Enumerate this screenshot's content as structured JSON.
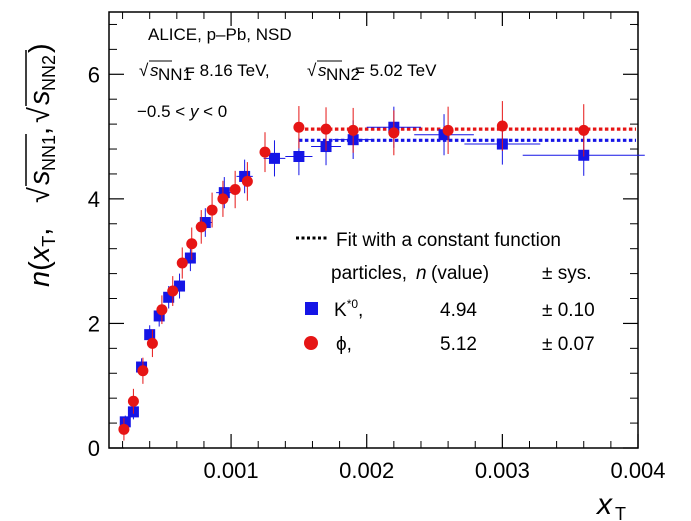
{
  "chart_data": {
    "type": "scatter",
    "annotations": {
      "collision": "ALICE, p–Pb, NSD",
      "energy_line": "√sNN1 = 8.16 TeV, √sNN2 = 5.02 TeV",
      "energy_1": "= 8.16 TeV,",
      "energy_2": "= 5.02 TeV",
      "rapidity": "−0.5 < y < 0"
    },
    "xlabel": "x_T",
    "ylabel": "n(x_T, √sNN1, √sNN2)",
    "xlim": [
      0.0001,
      0.004
    ],
    "ylim": [
      0,
      7
    ],
    "xticks": [
      0.001,
      0.002,
      0.003,
      0.004
    ],
    "xtick_labels": [
      "0.001",
      "0.002",
      "0.003",
      "0.004"
    ],
    "yticks": [
      0,
      2,
      4,
      6
    ],
    "ytick_labels": [
      "0",
      "2",
      "4",
      "6"
    ],
    "legend": {
      "fit_label": "Fit with a constant function",
      "header_particles": "particles,",
      "header_n": "n",
      "header_value": "(value)",
      "header_sys": "± sys.",
      "rows": [
        {
          "label": "K*0,",
          "value": "4.94",
          "sys": "± 0.10"
        },
        {
          "label": "ϕ,",
          "value": "5.12",
          "sys": "± 0.07"
        }
      ]
    },
    "series": [
      {
        "name": "K*0",
        "color": "#1515e6",
        "marker": "square",
        "fit": 4.94,
        "points": [
          [
            0.00022,
            0.42,
            0.1,
            2e-05
          ],
          [
            0.00028,
            0.58,
            0.12,
            2e-05
          ],
          [
            0.00034,
            1.3,
            0.14,
            2e-05
          ],
          [
            0.0004,
            1.82,
            0.15,
            3e-05
          ],
          [
            0.00047,
            2.12,
            0.17,
            3e-05
          ],
          [
            0.00054,
            2.42,
            0.18,
            3e-05
          ],
          [
            0.00062,
            2.6,
            0.2,
            4e-05
          ],
          [
            0.0007,
            3.05,
            0.21,
            4e-05
          ],
          [
            0.00081,
            3.62,
            0.23,
            5e-05
          ],
          [
            0.00095,
            4.1,
            0.25,
            6e-05
          ],
          [
            0.0011,
            4.36,
            0.27,
            6e-05
          ],
          [
            0.00132,
            4.65,
            0.29,
            8e-05
          ],
          [
            0.0015,
            4.68,
            0.3,
            0.0001
          ],
          [
            0.0017,
            4.84,
            0.3,
            0.00011
          ],
          [
            0.0019,
            4.95,
            0.31,
            0.00015
          ],
          [
            0.0022,
            5.15,
            0.33,
            0.0002
          ],
          [
            0.00257,
            5.03,
            0.33,
            0.00022
          ],
          [
            0.003,
            4.88,
            0.33,
            0.00028
          ],
          [
            0.0036,
            4.7,
            0.33,
            0.00045
          ]
        ]
      },
      {
        "name": "ϕ",
        "color": "#e61515",
        "marker": "circle",
        "fit": 5.12,
        "points": [
          [
            0.00021,
            0.3,
            0.18
          ],
          [
            0.00028,
            0.75,
            0.2
          ],
          [
            0.00035,
            1.24,
            0.21
          ],
          [
            0.00042,
            1.68,
            0.22
          ],
          [
            0.00049,
            2.22,
            0.23
          ],
          [
            0.00057,
            2.52,
            0.24
          ],
          [
            0.00064,
            2.97,
            0.25
          ],
          [
            0.00071,
            3.28,
            0.26
          ],
          [
            0.00078,
            3.55,
            0.27
          ],
          [
            0.00086,
            3.82,
            0.28
          ],
          [
            0.00094,
            4.0,
            0.29
          ],
          [
            0.00103,
            4.15,
            0.3
          ],
          [
            0.00112,
            4.28,
            0.31
          ],
          [
            0.00125,
            4.75,
            0.32
          ],
          [
            0.0015,
            5.15,
            0.34
          ],
          [
            0.0017,
            5.12,
            0.35
          ],
          [
            0.0019,
            5.1,
            0.36
          ],
          [
            0.0022,
            5.06,
            0.36
          ],
          [
            0.0026,
            5.1,
            0.38
          ],
          [
            0.003,
            5.17,
            0.4
          ],
          [
            0.0036,
            5.1,
            0.42
          ]
        ]
      }
    ]
  }
}
